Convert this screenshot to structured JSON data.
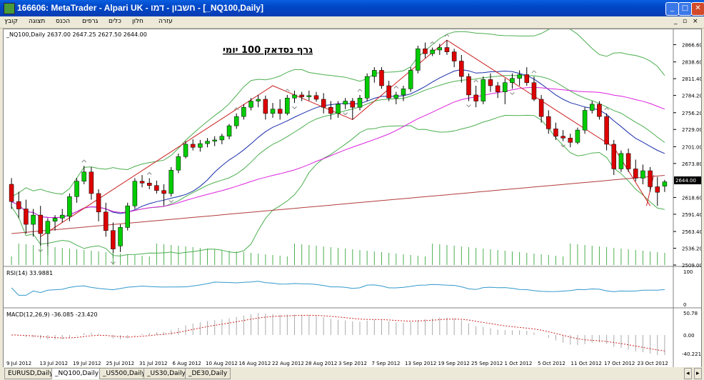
{
  "window": {
    "title": "166606: MetaTrader - Alpari UK - חשבון - דמו - [_NQ100,Daily]"
  },
  "menu": {
    "items": [
      "קובץ",
      "תצוגה",
      "הכנס",
      "גרפים",
      "כלים",
      "חלון",
      "עזרה"
    ]
  },
  "chart": {
    "header": "_NQ100,Daily  2637.00 2647.25 2627.50 2644.00",
    "annotation": "גרף נסדאק 100 יומי",
    "current_price": "2644.00",
    "price_ticks": [
      "2866.60",
      "2838.60",
      "2811.40",
      "2784.20",
      "2756.20",
      "2729.00",
      "2701.00",
      "2673.80",
      "2618.60",
      "2591.40",
      "2563.40",
      "2536.20",
      "2509.00"
    ],
    "date_labels": [
      "9 Jul 2012",
      "13 Jul 2012",
      "19 Jul 2012",
      "25 Jul 2012",
      "31 Jul 2012",
      "6 Aug 2012",
      "10 Aug 2012",
      "16 Aug 2012",
      "22 Aug 2012",
      "28 Aug 2012",
      "3 Sep 2012",
      "7 Sep 2012",
      "13 Sep 2012",
      "19 Sep 2012",
      "25 Sep 2012",
      "1 Oct 2012",
      "5 Oct 2012",
      "11 Oct 2012",
      "17 Oct 2012",
      "23 Oct 2012"
    ],
    "colors": {
      "bull": "#00cc00",
      "bear": "#dd0000",
      "ma_long": "#b33b3b",
      "ma_mid": "#dd22dd",
      "ma_fast": "#1a2eaa",
      "bands": "#4caf50",
      "rsi": "#3399cc",
      "macd_signal": "#cc2222",
      "hist": "#aaaaaa"
    }
  },
  "rsi": {
    "label": "RSI(14) 33.9881",
    "ticks": [
      "100",
      "0"
    ]
  },
  "macd": {
    "label": "MACD(12,26,9) -36.085 -23.420",
    "ticks": [
      "50.78",
      "0.00",
      "-40.221"
    ]
  },
  "tabs": [
    "EURUSD,Daily",
    "_NQ100,Daily",
    "_US500,Daily",
    "_US30,Daily",
    "_DE30,Daily"
  ],
  "chart_data": {
    "type": "candlestick",
    "ylim": [
      2509,
      2880
    ],
    "candles": [
      [
        2640,
        2650,
        2600,
        2612
      ],
      [
        2612,
        2628,
        2585,
        2600
      ],
      [
        2600,
        2615,
        2560,
        2575
      ],
      [
        2575,
        2600,
        2555,
        2590
      ],
      [
        2590,
        2605,
        2540,
        2560
      ],
      [
        2560,
        2585,
        2525,
        2580
      ],
      [
        2580,
        2590,
        2565,
        2585
      ],
      [
        2585,
        2600,
        2578,
        2590
      ],
      [
        2588,
        2625,
        2580,
        2620
      ],
      [
        2620,
        2650,
        2610,
        2645
      ],
      [
        2645,
        2670,
        2640,
        2660
      ],
      [
        2660,
        2668,
        2615,
        2625
      ],
      [
        2625,
        2632,
        2580,
        2595
      ],
      [
        2595,
        2610,
        2555,
        2565
      ],
      [
        2565,
        2578,
        2520,
        2535
      ],
      [
        2540,
        2575,
        2530,
        2570
      ],
      [
        2570,
        2610,
        2565,
        2605
      ],
      [
        2605,
        2650,
        2600,
        2645
      ],
      [
        2645,
        2655,
        2635,
        2642
      ],
      [
        2642,
        2650,
        2632,
        2638
      ],
      [
        2638,
        2646,
        2625,
        2630
      ],
      [
        2630,
        2640,
        2605,
        2625
      ],
      [
        2625,
        2668,
        2620,
        2663
      ],
      [
        2663,
        2690,
        2658,
        2685
      ],
      [
        2685,
        2710,
        2682,
        2705
      ],
      [
        2705,
        2713,
        2695,
        2700
      ],
      [
        2700,
        2712,
        2693,
        2706
      ],
      [
        2706,
        2715,
        2700,
        2710
      ],
      [
        2710,
        2718,
        2702,
        2712
      ],
      [
        2712,
        2722,
        2705,
        2718
      ],
      [
        2718,
        2738,
        2713,
        2735
      ],
      [
        2735,
        2755,
        2730,
        2750
      ],
      [
        2750,
        2770,
        2745,
        2765
      ],
      [
        2765,
        2780,
        2760,
        2775
      ],
      [
        2775,
        2785,
        2765,
        2778
      ],
      [
        2778,
        2784,
        2745,
        2755
      ],
      [
        2755,
        2772,
        2748,
        2762
      ],
      [
        2762,
        2778,
        2745,
        2755
      ],
      [
        2755,
        2785,
        2752,
        2780
      ],
      [
        2780,
        2792,
        2772,
        2785
      ],
      [
        2785,
        2790,
        2775,
        2782
      ],
      [
        2782,
        2792,
        2776,
        2784
      ],
      [
        2784,
        2790,
        2774,
        2778
      ],
      [
        2778,
        2788,
        2755,
        2765
      ],
      [
        2765,
        2775,
        2745,
        2755
      ],
      [
        2755,
        2775,
        2748,
        2770
      ],
      [
        2770,
        2780,
        2762,
        2775
      ],
      [
        2775,
        2780,
        2745,
        2765
      ],
      [
        2765,
        2785,
        2760,
        2780
      ],
      [
        2780,
        2820,
        2775,
        2815
      ],
      [
        2815,
        2830,
        2805,
        2825
      ],
      [
        2825,
        2830,
        2795,
        2800
      ],
      [
        2800,
        2808,
        2775,
        2780
      ],
      [
        2780,
        2790,
        2770,
        2785
      ],
      [
        2785,
        2800,
        2775,
        2795
      ],
      [
        2795,
        2830,
        2790,
        2825
      ],
      [
        2825,
        2865,
        2820,
        2860
      ],
      [
        2860,
        2870,
        2845,
        2852
      ],
      [
        2852,
        2862,
        2848,
        2858
      ],
      [
        2858,
        2868,
        2850,
        2862
      ],
      [
        2862,
        2874,
        2850,
        2855
      ],
      [
        2855,
        2860,
        2830,
        2840
      ],
      [
        2840,
        2850,
        2805,
        2815
      ],
      [
        2815,
        2820,
        2775,
        2785
      ],
      [
        2785,
        2800,
        2765,
        2775
      ],
      [
        2775,
        2815,
        2770,
        2810
      ],
      [
        2810,
        2820,
        2790,
        2800
      ],
      [
        2800,
        2806,
        2780,
        2790
      ],
      [
        2790,
        2812,
        2770,
        2805
      ],
      [
        2805,
        2820,
        2795,
        2812
      ],
      [
        2812,
        2825,
        2800,
        2818
      ],
      [
        2818,
        2830,
        2800,
        2805
      ],
      [
        2805,
        2815,
        2775,
        2778
      ],
      [
        2778,
        2785,
        2740,
        2750
      ],
      [
        2750,
        2760,
        2722,
        2730
      ],
      [
        2730,
        2740,
        2712,
        2718
      ],
      [
        2718,
        2728,
        2710,
        2715
      ],
      [
        2715,
        2722,
        2700,
        2708
      ],
      [
        2708,
        2732,
        2705,
        2728
      ],
      [
        2728,
        2765,
        2722,
        2760
      ],
      [
        2760,
        2775,
        2755,
        2770
      ],
      [
        2770,
        2775,
        2745,
        2750
      ],
      [
        2750,
        2755,
        2695,
        2705
      ],
      [
        2705,
        2712,
        2655,
        2665
      ],
      [
        2665,
        2695,
        2660,
        2690
      ],
      [
        2690,
        2698,
        2660,
        2665
      ],
      [
        2665,
        2680,
        2645,
        2650
      ],
      [
        2650,
        2672,
        2640,
        2662
      ],
      [
        2662,
        2668,
        2628,
        2636
      ],
      [
        2636,
        2652,
        2605,
        2627
      ],
      [
        2637,
        2647.25,
        2627.5,
        2644
      ]
    ]
  }
}
